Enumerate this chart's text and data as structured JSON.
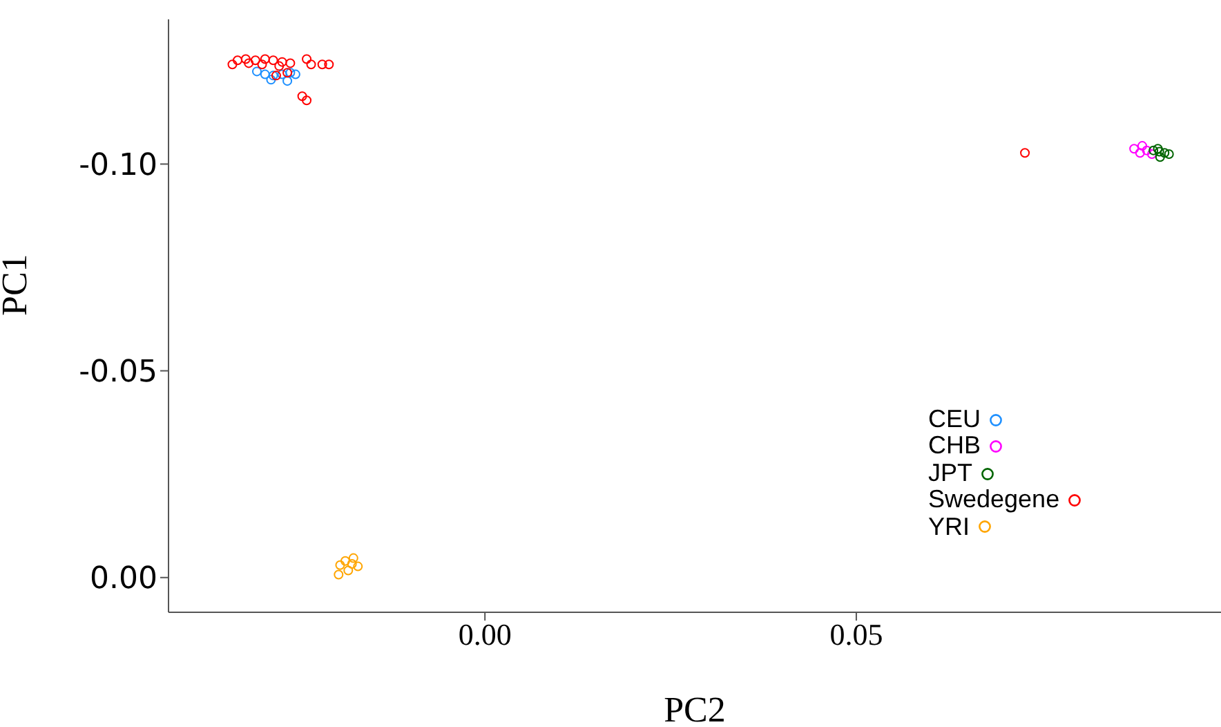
{
  "chart_data": {
    "type": "scatter",
    "xlabel": "PC2",
    "ylabel": "PC1",
    "marker": "circle",
    "legend": "bottom right",
    "grid": false,
    "xlim": [
      -0.0426,
      0.0991
    ],
    "xticks": [
      {
        "value": 0,
        "label": "0.00"
      },
      {
        "value": 0.05,
        "label": "0.05"
      }
    ],
    "ylim": [
      0.0084,
      -0.135
    ],
    "yticks": [
      {
        "value": -0.1,
        "label": "-0.10"
      },
      {
        "value": -0.05,
        "label": "-0.05"
      },
      {
        "value": 0,
        "label": "0.00"
      }
    ],
    "series": [
      {
        "name": "CEU",
        "color": "#1e90ff",
        "x": [
          -0.0307,
          -0.0296,
          -0.0285,
          -0.0273,
          -0.0262,
          -0.0255,
          -0.0266,
          -0.0288
        ],
        "values": [
          -0.1224,
          -0.1217,
          -0.1214,
          -0.1217,
          -0.1221,
          -0.1217,
          -0.1201,
          -0.1204
        ]
      },
      {
        "name": "CHB",
        "color": "#ff00ff",
        "x": [
          0.0874,
          0.0882,
          0.0891,
          0.0898,
          0.0885
        ],
        "values": [
          -0.1037,
          -0.1027,
          -0.1033,
          -0.1024,
          -0.1044
        ]
      },
      {
        "name": "JPT",
        "color": "#006400",
        "x": [
          0.09,
          0.0908,
          0.0915,
          0.0921,
          0.0909,
          0.0906
        ],
        "values": [
          -0.1033,
          -0.103,
          -0.1027,
          -0.1024,
          -0.1017,
          -0.1037
        ]
      },
      {
        "name": "Swedegene",
        "color": "#ff0000",
        "x": [
          -0.034,
          -0.0333,
          -0.0322,
          -0.0309,
          -0.0296,
          -0.0285,
          -0.0273,
          -0.0262,
          -0.0318,
          -0.03,
          -0.0277,
          -0.0266,
          -0.0281,
          -0.024,
          -0.0234,
          -0.0219,
          -0.021,
          -0.0246,
          -0.024,
          0.0727
        ],
        "values": [
          -0.1241,
          -0.1251,
          -0.1254,
          -0.1251,
          -0.1254,
          -0.1251,
          -0.1247,
          -0.1244,
          -0.1244,
          -0.1241,
          -0.1237,
          -0.1221,
          -0.1214,
          -0.1254,
          -0.1241,
          -0.1241,
          -0.1241,
          -0.1164,
          -0.1154,
          -0.1027
        ]
      },
      {
        "name": "YRI",
        "color": "#ffa500",
        "x": [
          -0.0195,
          -0.0188,
          -0.0179,
          -0.0171,
          -0.0184,
          -0.0197,
          -0.0177
        ],
        "values": [
          -0.003,
          -0.004,
          -0.0033,
          -0.0027,
          -0.0017,
          -0.0007,
          -0.0047
        ]
      }
    ]
  }
}
